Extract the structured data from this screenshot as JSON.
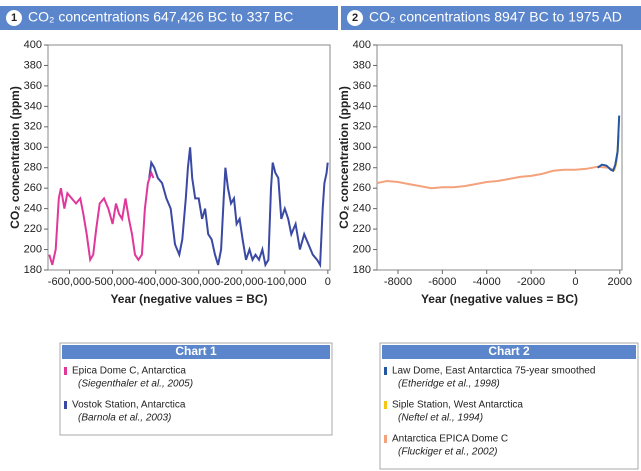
{
  "chart_data": [
    {
      "type": "line",
      "badge": "1",
      "title": "CO₂ concentrations 647,426 BC to 337 BC",
      "xlabel": "Year (negative values = BC)",
      "ylabel": "CO₂ concentration (ppm)",
      "xlim": [
        -650000,
        5000
      ],
      "ylim": [
        180,
        400
      ],
      "xticks": [
        {
          "value": -600000,
          "label": "-600,000"
        },
        {
          "value": -500000,
          "label": "-500,000"
        },
        {
          "value": -400000,
          "label": "-400,000"
        },
        {
          "value": -300000,
          "label": "-300,000"
        },
        {
          "value": -200000,
          "label": "-200,000"
        },
        {
          "value": -100000,
          "label": "-100,000"
        },
        0
      ],
      "yticks": [
        180,
        200,
        220,
        240,
        260,
        280,
        300,
        320,
        340,
        360,
        380,
        400
      ],
      "legend_title": "Chart 1",
      "series": [
        {
          "name": "Epica Dome C, Antarctica",
          "citation": "(Siegenthaler et al., 2005)",
          "color": "#e0389a",
          "x": [
            -647000,
            -640000,
            -632000,
            -625000,
            -620000,
            -612000,
            -605000,
            -595000,
            -585000,
            -575000,
            -568000,
            -560000,
            -552000,
            -545000,
            -538000,
            -530000,
            -520000,
            -510000,
            -500000,
            -492000,
            -485000,
            -478000,
            -470000,
            -462000,
            -455000,
            -448000,
            -440000,
            -432000,
            -425000,
            -418000,
            -410000,
            -405000
          ],
          "values": [
            195,
            185,
            200,
            250,
            260,
            240,
            255,
            250,
            245,
            250,
            235,
            215,
            190,
            195,
            220,
            245,
            250,
            240,
            225,
            245,
            235,
            230,
            250,
            230,
            215,
            195,
            190,
            195,
            240,
            265,
            275,
            270
          ]
        },
        {
          "name": "Vostok Station, Antarctica",
          "citation": "(Barnola et al., 2003)",
          "color": "#3a49a3",
          "x": [
            -415000,
            -410000,
            -403000,
            -395000,
            -385000,
            -375000,
            -365000,
            -355000,
            -345000,
            -338000,
            -330000,
            -325000,
            -320000,
            -315000,
            -308000,
            -300000,
            -292000,
            -285000,
            -278000,
            -270000,
            -262000,
            -255000,
            -248000,
            -242000,
            -238000,
            -232000,
            -225000,
            -218000,
            -212000,
            -205000,
            -198000,
            -190000,
            -182000,
            -175000,
            -168000,
            -160000,
            -152000,
            -145000,
            -138000,
            -132000,
            -128000,
            -122000,
            -115000,
            -108000,
            -100000,
            -92000,
            -85000,
            -75000,
            -65000,
            -55000,
            -45000,
            -35000,
            -25000,
            -18000,
            -12000,
            -8000,
            -3000,
            -337
          ],
          "values": [
            270,
            285,
            280,
            270,
            265,
            250,
            240,
            205,
            195,
            210,
            250,
            280,
            300,
            270,
            250,
            250,
            230,
            240,
            215,
            210,
            195,
            185,
            200,
            250,
            280,
            260,
            245,
            250,
            225,
            230,
            210,
            190,
            200,
            190,
            195,
            190,
            200,
            185,
            190,
            260,
            285,
            275,
            270,
            230,
            240,
            230,
            215,
            225,
            200,
            215,
            205,
            195,
            190,
            185,
            240,
            265,
            275,
            285
          ]
        }
      ]
    },
    {
      "type": "line",
      "badge": "2",
      "title": "CO₂ concentrations 8947 BC to 1975 AD",
      "xlabel": "Year (negative values = BC)",
      "ylabel": "CO₂ concentration (ppm)",
      "xlim": [
        -8947,
        2100
      ],
      "ylim": [
        180,
        400
      ],
      "xticks": [
        -8000,
        -6000,
        -4000,
        -2000,
        0,
        2000
      ],
      "yticks": [
        180,
        200,
        220,
        240,
        260,
        280,
        300,
        320,
        340,
        360,
        380,
        400
      ],
      "legend_title": "Chart 2",
      "series": [
        {
          "name": "Law Dome, East Antarctica 75-year smoothed",
          "citation": "(Etheridge et al., 1998)",
          "color": "#2356a3",
          "x": [
            1000,
            1200,
            1400,
            1600,
            1700,
            1800,
            1900,
            1975
          ],
          "values": [
            280,
            283,
            282,
            278,
            277,
            283,
            296,
            331
          ]
        },
        {
          "name": "Siple Station, West Antarctica",
          "citation": "(Neftel et al., 1994)",
          "color": "#f5c518",
          "x": [
            1750,
            1800,
            1850,
            1900,
            1953
          ],
          "values": [
            277,
            281,
            286,
            296,
            312
          ]
        },
        {
          "name": "Antarctica EPICA Dome C",
          "citation": "(Fluckiger et al., 2002)",
          "color": "#f4a27c",
          "x": [
            -8947,
            -8500,
            -8000,
            -7500,
            -7000,
            -6500,
            -6000,
            -5500,
            -5000,
            -4500,
            -4000,
            -3500,
            -3000,
            -2500,
            -2000,
            -1500,
            -1000,
            -500,
            0,
            500,
            1000,
            1500,
            1700
          ],
          "values": [
            265,
            267,
            266,
            264,
            262,
            260,
            261,
            261,
            262,
            264,
            266,
            267,
            269,
            271,
            272,
            274,
            277,
            278,
            278,
            279,
            281,
            280,
            278
          ]
        }
      ]
    }
  ]
}
